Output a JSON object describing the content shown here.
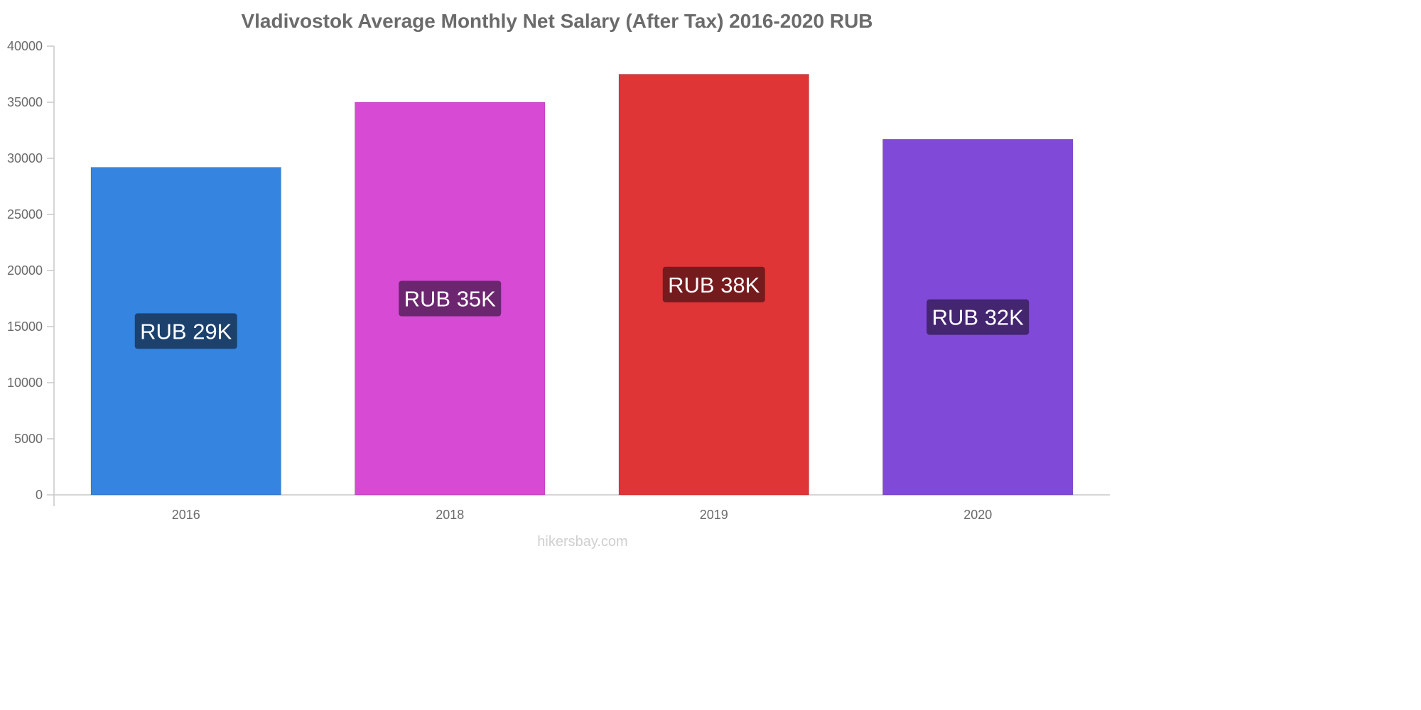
{
  "chart_data": {
    "type": "bar",
    "title": "Vladivostok Average Monthly Net Salary (After Tax) 2016-2020 RUB",
    "xlabel": "",
    "ylabel": "",
    "ylim": [
      0,
      40000
    ],
    "yticks": [
      "0",
      "5000",
      "10000",
      "15000",
      "20000",
      "25000",
      "30000",
      "35000",
      "40000"
    ],
    "categories": [
      "2016",
      "2018",
      "2019",
      "2020"
    ],
    "values": [
      29200,
      35000,
      37500,
      31700
    ],
    "data_labels": [
      "RUB 29K",
      "RUB 35K",
      "RUB 38K",
      "RUB 32K"
    ],
    "bar_colors": [
      "#3584e0",
      "#d64ad4",
      "#e03536",
      "#8149d8"
    ],
    "label_colors": [
      "#1c416d",
      "#6c2670",
      "#751b1d",
      "#432570"
    ],
    "grid": false,
    "legend": "none"
  },
  "footer": {
    "credit": "hikersbay.com"
  }
}
